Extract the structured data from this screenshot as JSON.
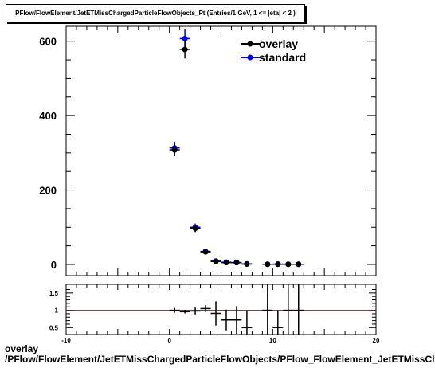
{
  "title": "PFlow/FlowElement/JetETMissChargedParticleFlowObjects_Pt (Entries/1 GeV,  1 <= |eta| < 2 )",
  "caption": {
    "line1": "overlay",
    "line2": "/PFlow/FlowElement/JetETMissChargedParticleFlowObjects/PFlow_FlowElement_JetETMissChargedParticleFlowObjects_Pt"
  },
  "colors": {
    "overlay": "#000000",
    "standard": "#0000ff",
    "ratio_line": "#c00000"
  },
  "chart_data": [
    {
      "type": "scatter",
      "title": "PFlow/FlowElement/JetETMissChargedParticleFlowObjects_Pt (Entries/1 GeV,  1 <= |eta| < 2 )",
      "xlim": [
        -10,
        20
      ],
      "ylim": [
        -30,
        640
      ],
      "yticks": [
        0,
        200,
        400,
        600
      ],
      "legend_position": "top-right",
      "series": [
        {
          "name": "overlay",
          "x": [
            0.5,
            1.5,
            2.5,
            3.5,
            4.5,
            5.5,
            6.5,
            7.5,
            9.5,
            10.5,
            11.5,
            12.5
          ],
          "y": [
            308,
            578,
            97,
            34,
            8,
            5,
            5,
            1,
            0.5,
            0.5,
            0.5,
            0.5
          ],
          "err": [
            17,
            24,
            10,
            6,
            3,
            2,
            2,
            1,
            1,
            1,
            1,
            1
          ]
        },
        {
          "name": "standard",
          "x": [
            0.5,
            1.5,
            2.5,
            3.5,
            4.5,
            5.5,
            6.5,
            7.5,
            9.5,
            10.5,
            11.5,
            12.5
          ],
          "y": [
            313,
            607,
            100,
            35,
            9,
            6,
            5,
            1.5,
            0.5,
            1,
            0.5,
            0.5
          ],
          "err": [
            17,
            25,
            10,
            6,
            3,
            2,
            2,
            1,
            1,
            1,
            1,
            1
          ]
        }
      ]
    },
    {
      "type": "scatter",
      "xlim": [
        -10,
        20
      ],
      "ylim": [
        0.3,
        1.75
      ],
      "xticks": [
        -10,
        0,
        10,
        20
      ],
      "yticks": [
        0.5,
        1,
        1.5
      ],
      "reference_line": 1,
      "series": [
        {
          "x": [
            0.5,
            1.5,
            2.5,
            3.5,
            4.5,
            5.5,
            6.5,
            7.5,
            9.5,
            10.5,
            11.5,
            12.5
          ],
          "y": [
            1.0,
            0.96,
            0.98,
            1.05,
            0.91,
            0.72,
            0.72,
            0.5,
            1.0,
            0.5,
            1.0,
            1.0
          ],
          "err": [
            0.07,
            0.05,
            0.1,
            0.1,
            0.35,
            0.3,
            0.4,
            0.5,
            1.0,
            0.5,
            1.0,
            1.0
          ]
        }
      ]
    }
  ]
}
